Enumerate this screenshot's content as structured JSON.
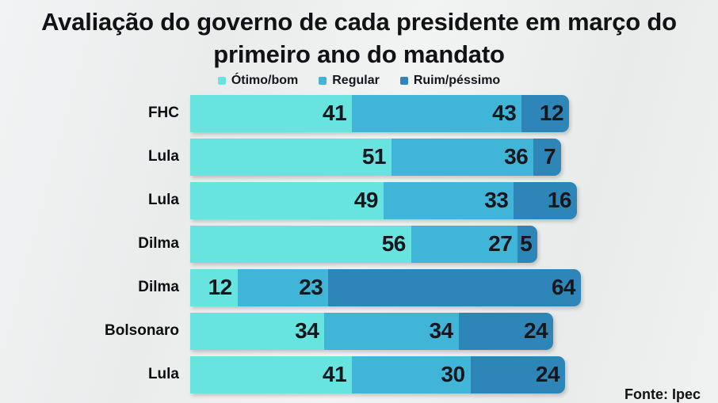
{
  "title": "Avaliação do governo de cada presidente em março do primeiro ano do mandato",
  "source": "Fonte: Ipec",
  "chart_data": {
    "type": "bar",
    "orientation": "horizontal",
    "stacked": true,
    "title": "Avaliação do governo de cada presidente em março do primeiro ano do mandato",
    "value_unit": "percent",
    "xlim": [
      0,
      100
    ],
    "legend_position": "top",
    "categories": [
      "FHC",
      "Lula",
      "Lula",
      "Dilma",
      "Dilma",
      "Bolsonaro",
      "Lula"
    ],
    "series": [
      {
        "name": "Ótimo/bom",
        "color": "#68e4e0",
        "values": [
          41,
          51,
          49,
          56,
          12,
          34,
          41
        ]
      },
      {
        "name": "Regular",
        "color": "#41b5d8",
        "values": [
          43,
          36,
          33,
          27,
          23,
          34,
          30
        ]
      },
      {
        "name": "Ruim/péssimo",
        "color": "#2e86b8",
        "values": [
          12,
          7,
          16,
          5,
          64,
          24,
          24
        ]
      }
    ]
  }
}
